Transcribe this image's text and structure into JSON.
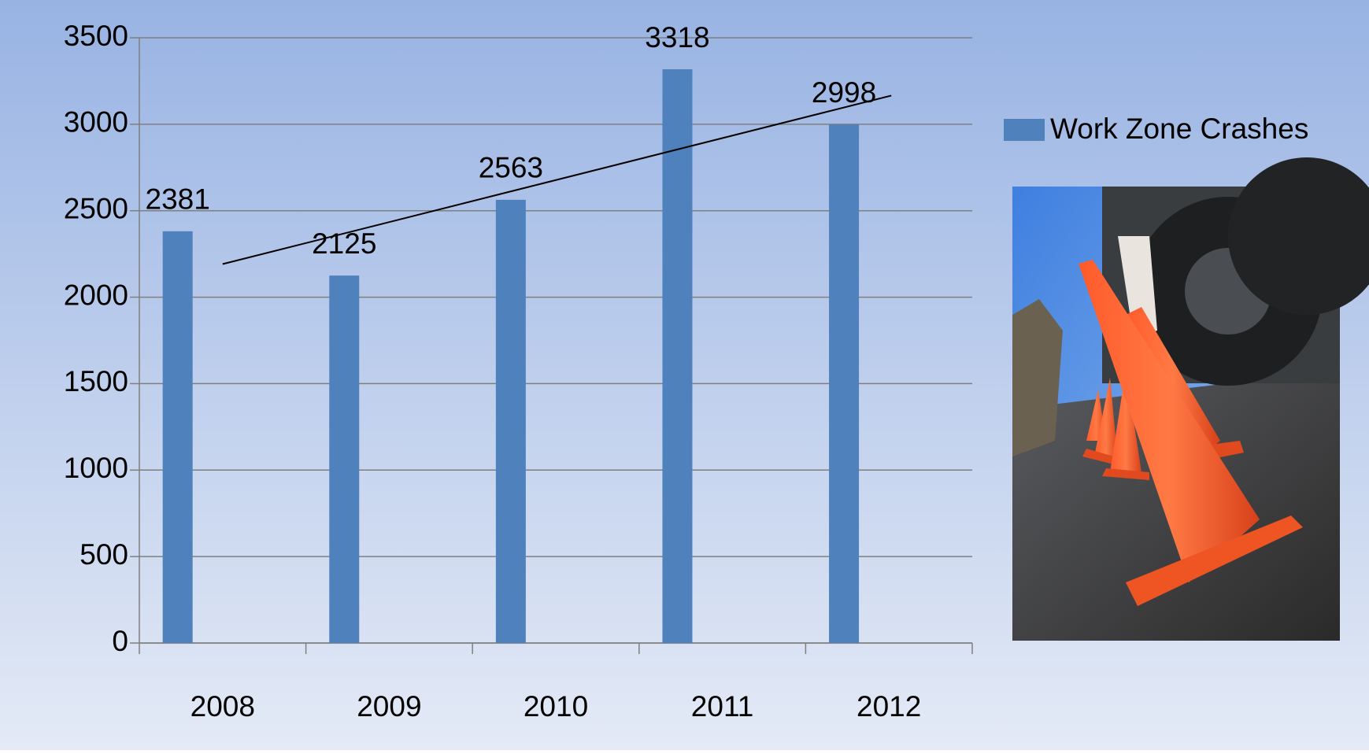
{
  "chart_data": {
    "type": "bar",
    "categories": [
      "2008",
      "2009",
      "2010",
      "2011",
      "2012"
    ],
    "series": [
      {
        "name": "Work Zone Crashes",
        "color": "#4f81bd",
        "values": [
          2381,
          2125,
          2563,
          3318,
          2998
        ]
      }
    ],
    "ylim": [
      0,
      3500
    ],
    "yticks": [
      0,
      500,
      1000,
      1500,
      2000,
      2500,
      3000,
      3500
    ],
    "grid": true,
    "trendline": "linear",
    "legend": "right"
  }
}
